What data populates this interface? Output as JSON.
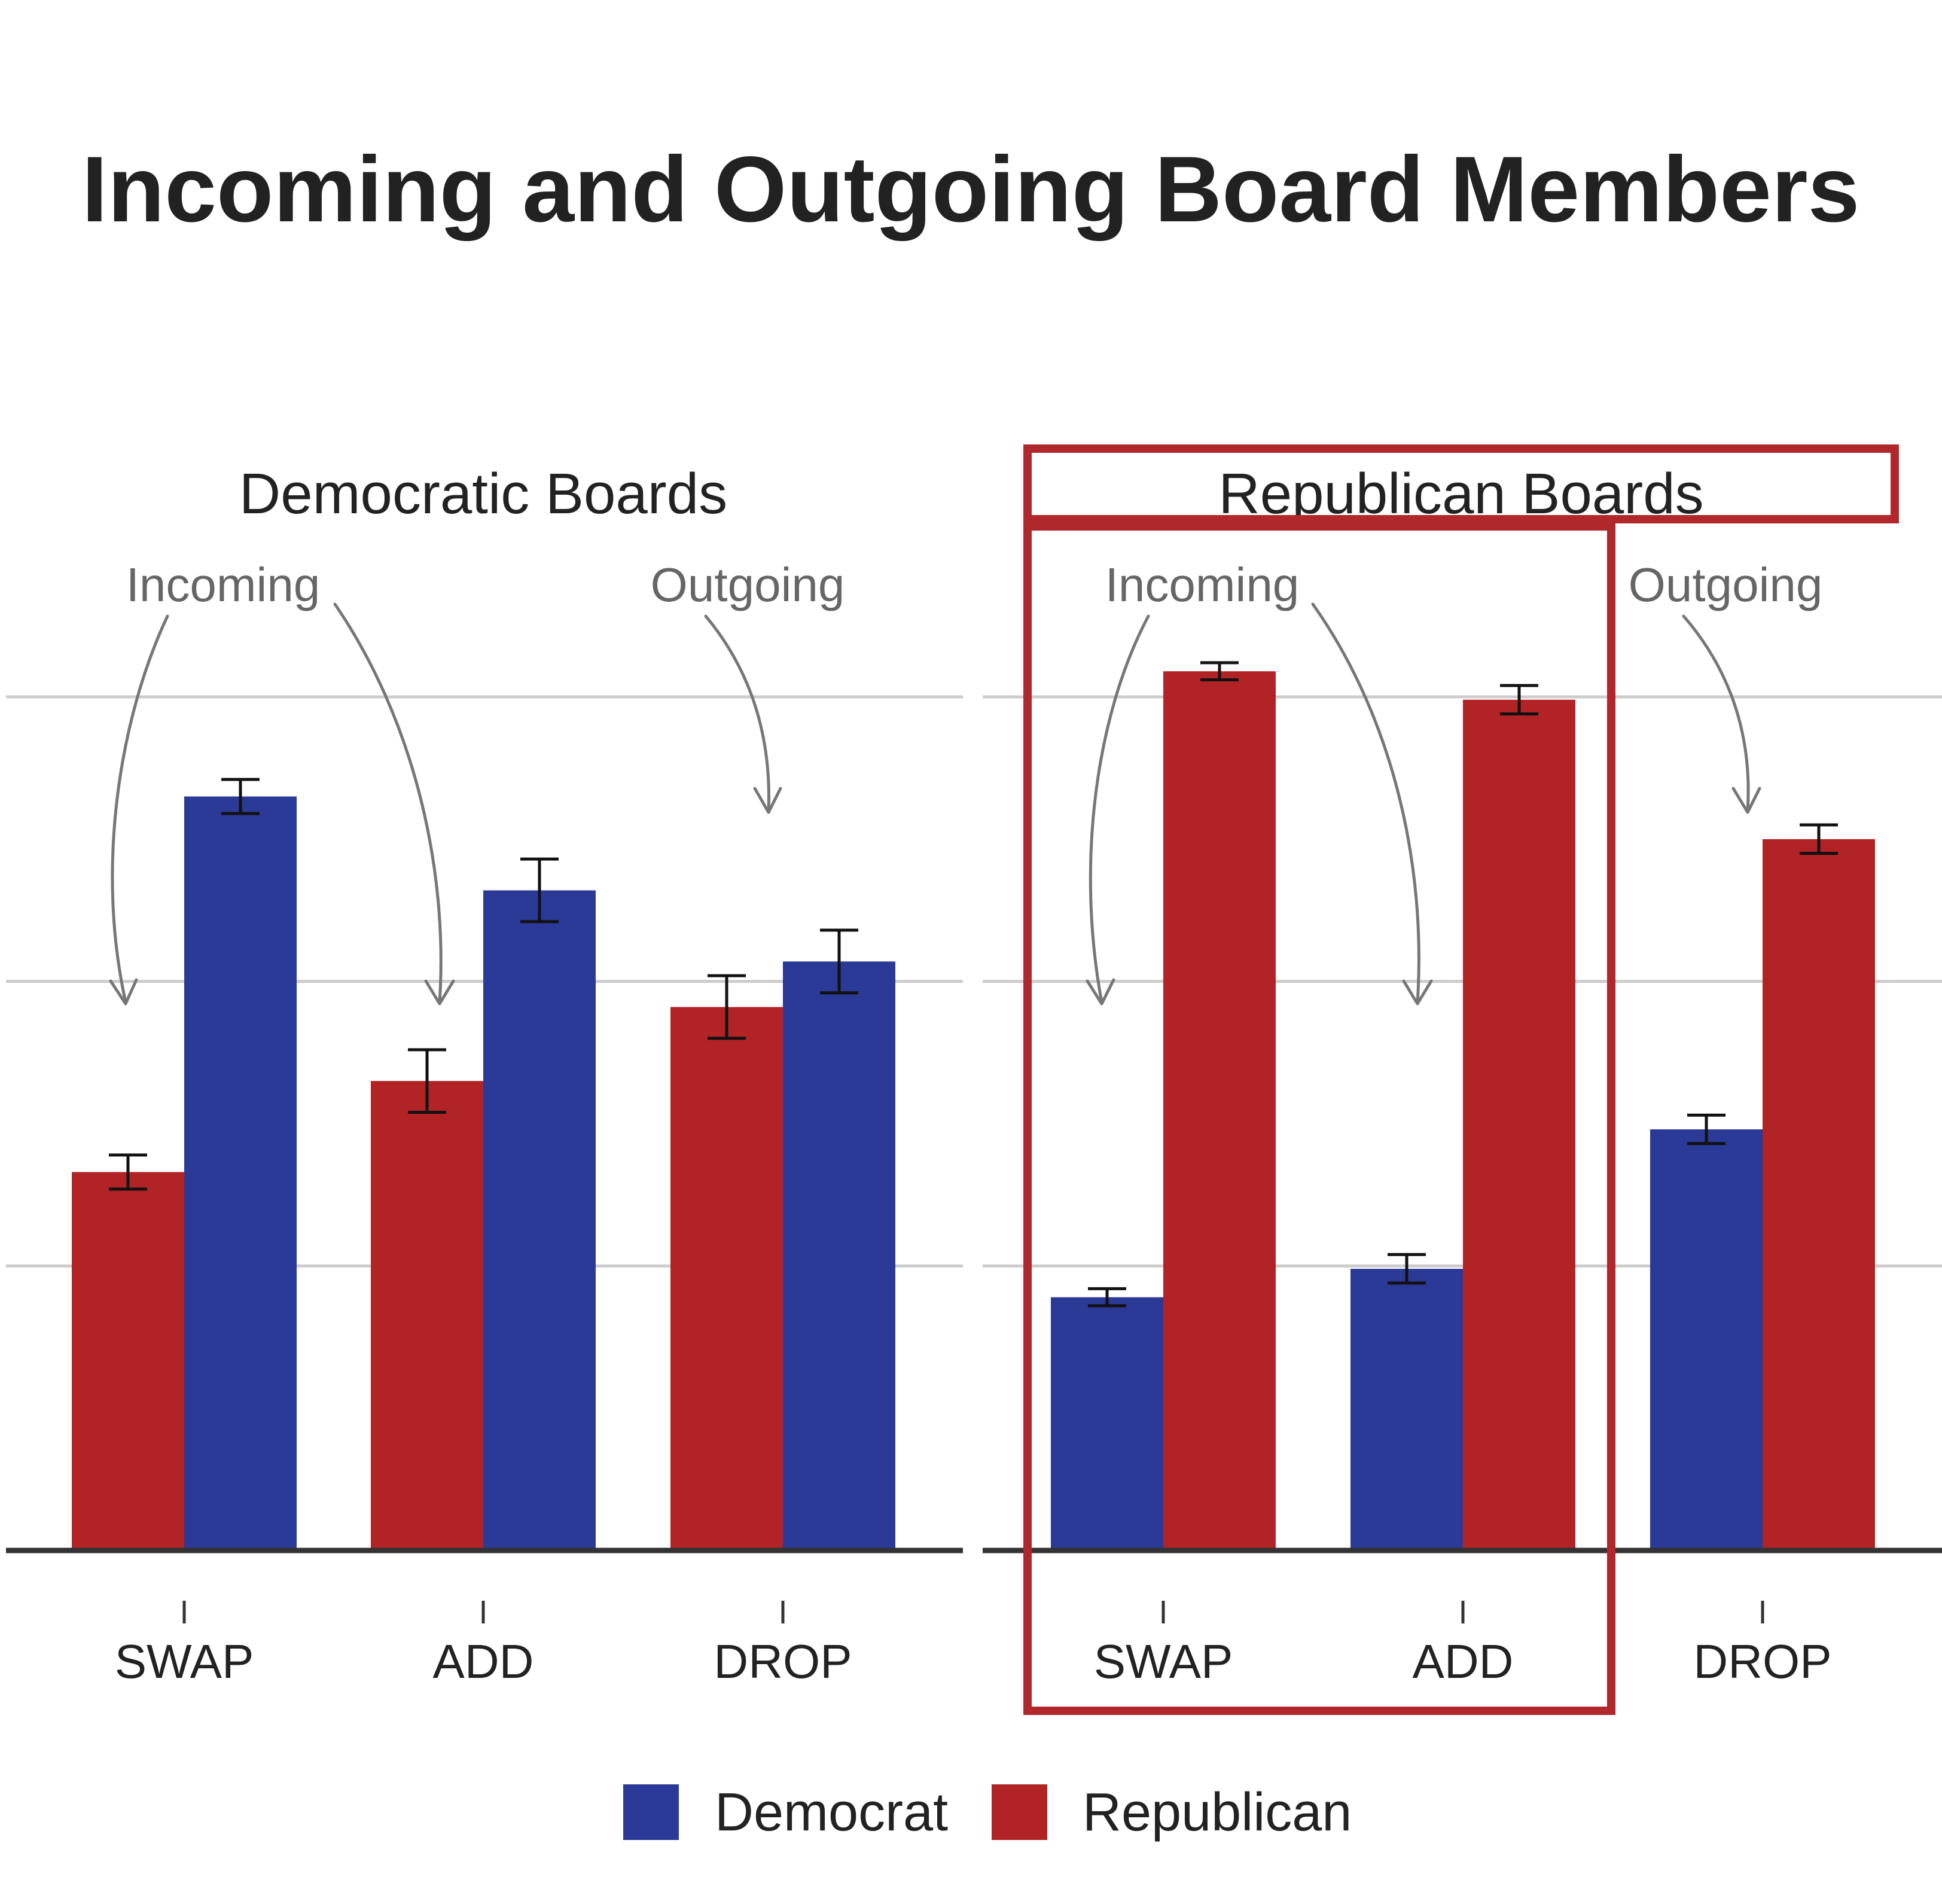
{
  "chart_data": {
    "type": "bar",
    "title": "Incoming and Outgoing Board Members",
    "xlabel": "",
    "ylabel": "",
    "ylim": [
      0,
      3.2
    ],
    "grid": true,
    "legend_placement": "bottom",
    "categories": [
      "SWAP",
      "ADD",
      "DROP"
    ],
    "colors": {
      "Democrat": "#2a3a96",
      "Republican": "#b22326"
    },
    "legend": [
      {
        "label": "Democrat",
        "color": "#2a3a96"
      },
      {
        "label": "Republican",
        "color": "#b22326"
      }
    ],
    "panels": [
      {
        "title": "Democratic Boards",
        "annotations": {
          "incoming": "Incoming",
          "outgoing": "Outgoing"
        },
        "series": [
          {
            "name": "Republican",
            "values": [
              1.33,
              1.65,
              1.91
            ],
            "errors": [
              0.06,
              0.11,
              0.11
            ]
          },
          {
            "name": "Democrat",
            "values": [
              2.65,
              2.32,
              2.07
            ],
            "errors": [
              0.06,
              0.11,
              0.11
            ]
          }
        ]
      },
      {
        "title": "Republican Boards",
        "annotations": {
          "incoming": "Incoming",
          "outgoing": "Outgoing"
        },
        "highlighted": true,
        "series": [
          {
            "name": "Democrat",
            "values": [
              0.89,
              0.99,
              1.48
            ],
            "errors": [
              0.03,
              0.05,
              0.05
            ]
          },
          {
            "name": "Republican",
            "values": [
              3.09,
              2.99,
              2.5
            ],
            "errors": [
              0.03,
              0.05,
              0.05
            ]
          }
        ]
      }
    ]
  }
}
